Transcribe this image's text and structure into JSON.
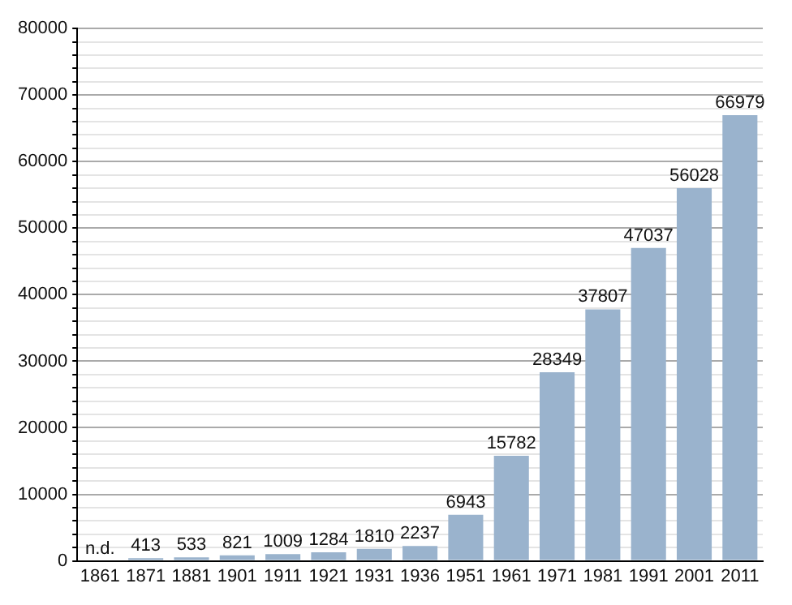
{
  "chart_data": {
    "type": "bar",
    "categories": [
      "1861",
      "1871",
      "1881",
      "1901",
      "1911",
      "1921",
      "1931",
      "1936",
      "1951",
      "1961",
      "1971",
      "1981",
      "1991",
      "2001",
      "2011"
    ],
    "values": [
      null,
      413,
      533,
      821,
      1009,
      1284,
      1810,
      2237,
      6943,
      15782,
      28349,
      37807,
      47037,
      56028,
      66979
    ],
    "value_labels": [
      "n.d.",
      "413",
      "533",
      "821",
      "1009",
      "1284",
      "1810",
      "2237",
      "6943",
      "15782",
      "28349",
      "37807",
      "47037",
      "56028",
      "66979"
    ],
    "color": "#9ab3cd",
    "ylim": [
      0,
      80000
    ],
    "yticks": [
      0,
      {
        "value": 2000,
        "label": null
      },
      {
        "value": 4000,
        "label": null
      },
      {
        "value": 6000,
        "label": null
      },
      {
        "value": 8000,
        "label": null
      },
      10000,
      {
        "value": 12000,
        "label": null
      },
      {
        "value": 14000,
        "label": null
      },
      {
        "value": 16000,
        "label": null
      },
      {
        "value": 18000,
        "label": null
      },
      20000,
      {
        "value": 22000,
        "label": null
      },
      {
        "value": 24000,
        "label": null
      },
      {
        "value": 26000,
        "label": null
      },
      {
        "value": 28000,
        "label": null
      },
      30000,
      {
        "value": 32000,
        "label": null
      },
      {
        "value": 34000,
        "label": null
      },
      {
        "value": 36000,
        "label": null
      },
      {
        "value": 38000,
        "label": null
      },
      40000,
      {
        "value": 42000,
        "label": null
      },
      {
        "value": 44000,
        "label": null
      },
      {
        "value": 46000,
        "label": null
      },
      {
        "value": 48000,
        "label": null
      },
      50000,
      {
        "value": 52000,
        "label": null
      },
      {
        "value": 54000,
        "label": null
      },
      {
        "value": 56000,
        "label": null
      },
      {
        "value": 58000,
        "label": null
      },
      60000,
      {
        "value": 62000,
        "label": null
      },
      {
        "value": 64000,
        "label": null
      },
      {
        "value": 66000,
        "label": null
      },
      {
        "value": 68000,
        "label": null
      },
      70000,
      {
        "value": 72000,
        "label": null
      },
      {
        "value": 74000,
        "label": null
      },
      {
        "value": 76000,
        "label": null
      },
      {
        "value": 78000,
        "label": null
      },
      80000
    ],
    "grid": "y",
    "legend": false
  }
}
